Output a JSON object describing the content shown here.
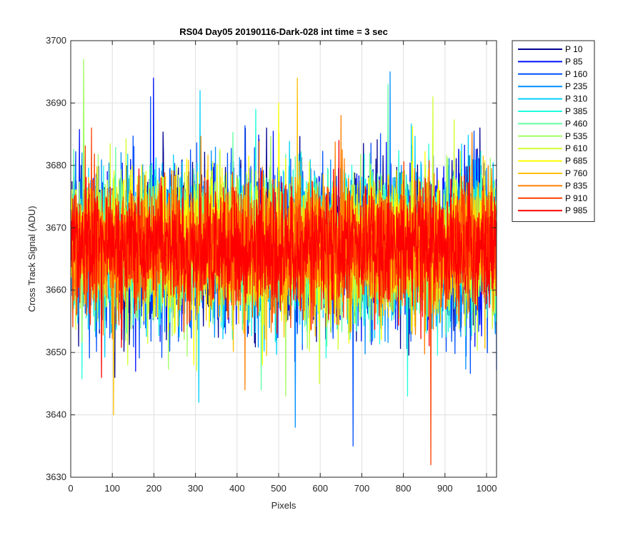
{
  "chart_data": {
    "type": "line",
    "title": "RS04 Day05 20190116-Dark-028 int time = 3 sec",
    "xlabel": "Pixels",
    "ylabel": "Cross Track Signal (ADU)",
    "xlim": [
      0,
      1024
    ],
    "ylim": [
      3630,
      3700
    ],
    "xticks": [
      0,
      100,
      200,
      300,
      400,
      500,
      600,
      700,
      800,
      900,
      1000
    ],
    "yticks": [
      3630,
      3640,
      3650,
      3660,
      3670,
      3680,
      3690,
      3700
    ],
    "grid": true,
    "legend_position": "outside-top-right",
    "x_count": 1024,
    "baseline": 3667,
    "series": [
      {
        "name": "P 10",
        "color": "#00008f",
        "min": 3646,
        "max": 3686
      },
      {
        "name": "P 85",
        "color": "#0010ff",
        "min": 3647,
        "max": 3694
      },
      {
        "name": "P 160",
        "color": "#0050ff",
        "min": 3635,
        "max": 3691
      },
      {
        "name": "P 235",
        "color": "#0090ff",
        "min": 3638,
        "max": 3695
      },
      {
        "name": "P 310",
        "color": "#00d0ff",
        "min": 3642,
        "max": 3692
      },
      {
        "name": "P 385",
        "color": "#20ffe0",
        "min": 3643,
        "max": 3689
      },
      {
        "name": "P 460",
        "color": "#60ffa0",
        "min": 3644,
        "max": 3693
      },
      {
        "name": "P 535",
        "color": "#a0ff60",
        "min": 3643,
        "max": 3697
      },
      {
        "name": "P 610",
        "color": "#d0ff30",
        "min": 3645,
        "max": 3691
      },
      {
        "name": "P 685",
        "color": "#ffff00",
        "min": 3648,
        "max": 3690
      },
      {
        "name": "P 760",
        "color": "#ffc000",
        "min": 3640,
        "max": 3694
      },
      {
        "name": "P 835",
        "color": "#ff8000",
        "min": 3644,
        "max": 3688
      },
      {
        "name": "P 910",
        "color": "#ff4000",
        "min": 3632,
        "max": 3686
      },
      {
        "name": "P 985",
        "color": "#ff0000",
        "min": 3646,
        "max": 3684
      }
    ]
  }
}
